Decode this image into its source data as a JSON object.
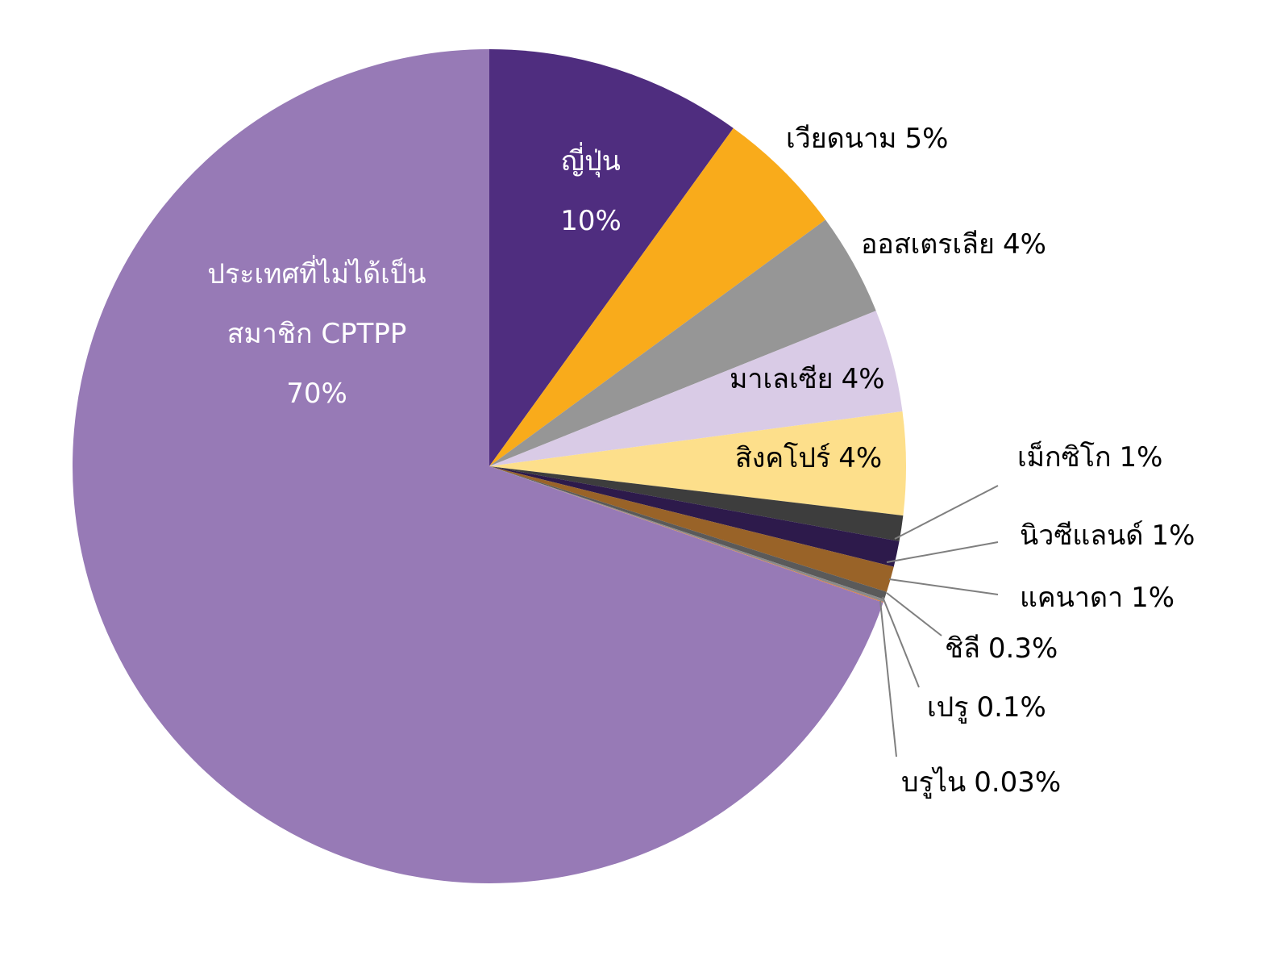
{
  "chart_data": {
    "type": "pie",
    "categories": [
      "ญี่ปุ่น",
      "เวียดนาม",
      "ออสเตรเลีย",
      "มาเลเซีย",
      "สิงคโปร์",
      "เม็กซิโก",
      "นิวซีแลนด์",
      "แคนาดา",
      "ชิลี",
      "เปรู",
      "บรูไน",
      "ประเทศที่ไม่ได้เป็น\nสมาชิก CPTPP"
    ],
    "values": [
      10,
      5,
      4,
      4,
      4,
      1,
      1,
      1,
      0.3,
      0.1,
      0.03,
      70
    ],
    "value_labels": [
      "10%",
      "5%",
      "4%",
      "4%",
      "4%",
      "1%",
      "1%",
      "1%",
      "0.3%",
      "0.1%",
      "0.03%",
      "70%"
    ],
    "colors": [
      "#4f2d7f",
      "#f9ab1b",
      "#969696",
      "#d9cbe6",
      "#fddf8b",
      "#3d3d3d",
      "#2d1a4b",
      "#996328",
      "#5a5a5a",
      "#8a8a8a",
      "#e07a3a",
      "#977ab6"
    ]
  }
}
